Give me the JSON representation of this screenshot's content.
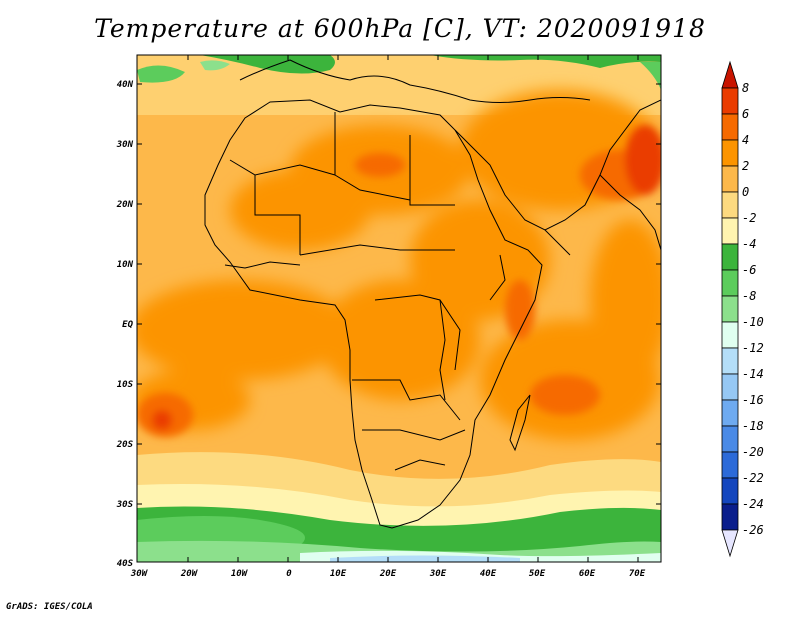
{
  "title": "Temperature at 600hPa [C], VT: 2020091918",
  "credit": "GrADS: IGES/COLA",
  "map": {
    "lat_ticks": [
      "40N",
      "30N",
      "20N",
      "10N",
      "EQ",
      "10S",
      "20S",
      "30S",
      "40S"
    ],
    "lon_ticks": [
      "30W",
      "20W",
      "10W",
      "0",
      "10E",
      "20E",
      "30E",
      "40E",
      "50E",
      "60E",
      "70E"
    ],
    "lat_range": [
      -40,
      45
    ],
    "lon_range": [
      -30,
      75
    ]
  },
  "colorbar": {
    "labels": [
      "8",
      "6",
      "4",
      "2",
      "0",
      "-2",
      "-4",
      "-6",
      "-8",
      "-10",
      "-12",
      "-14",
      "-16",
      "-18",
      "-20",
      "-22",
      "-24",
      "-26"
    ],
    "colors": [
      "#c81400",
      "#ea3c00",
      "#f66a00",
      "#fc9400",
      "#fdb84a",
      "#fdda80",
      "#fff4b0",
      "#3cb43c",
      "#5ccc5c",
      "#8ce08c",
      "#e0fff0",
      "#b4def8",
      "#96c8f4",
      "#6eaaf0",
      "#4a8ae6",
      "#2c6ad8",
      "#1446be",
      "#0a1e8c",
      "#e6e6ff"
    ]
  }
}
